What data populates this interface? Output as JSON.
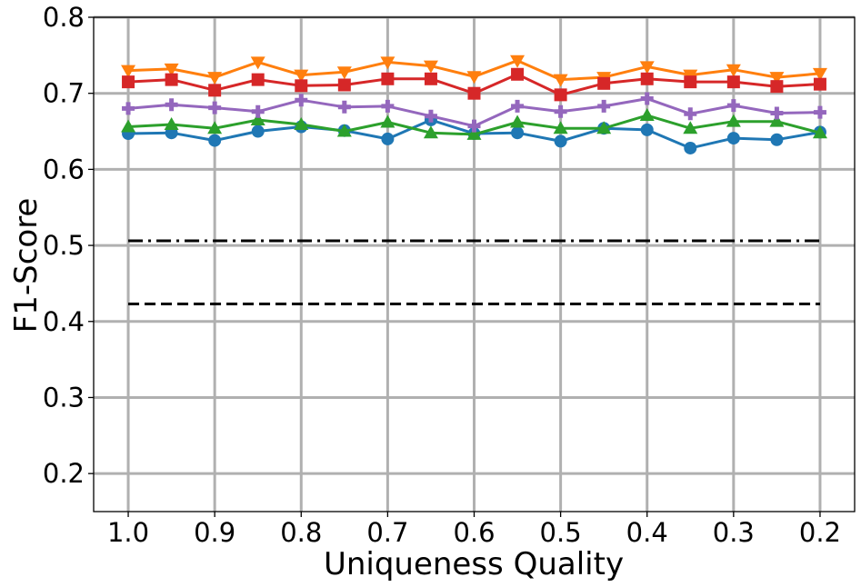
{
  "chart_data": {
    "type": "line",
    "title": "",
    "xlabel": "Uniqueness Quality",
    "ylabel": "F1-Score",
    "xlim": [
      1.04,
      0.16
    ],
    "ylim": [
      0.15,
      0.8
    ],
    "x_reversed": true,
    "grid": true,
    "x_ticks": [
      1.0,
      0.9,
      0.8,
      0.7,
      0.6,
      0.5,
      0.4,
      0.3,
      0.2
    ],
    "x_tick_labels": [
      "1.0",
      "0.9",
      "0.8",
      "0.7",
      "0.6",
      "0.5",
      "0.4",
      "0.3",
      "0.2"
    ],
    "y_ticks": [
      0.2,
      0.3,
      0.4,
      0.5,
      0.6,
      0.7,
      0.8
    ],
    "y_tick_labels": [
      "0.2",
      "0.3",
      "0.4",
      "0.5",
      "0.6",
      "0.7",
      "0.8"
    ],
    "x": [
      1.0,
      0.95,
      0.9,
      0.85,
      0.8,
      0.75,
      0.7,
      0.65,
      0.6,
      0.55,
      0.5,
      0.45,
      0.4,
      0.35,
      0.3,
      0.25,
      0.2
    ],
    "series": [
      {
        "color": "#1f77b4",
        "marker": "circle",
        "values": [
          0.647,
          0.648,
          0.638,
          0.65,
          0.656,
          0.651,
          0.64,
          0.665,
          0.647,
          0.648,
          0.637,
          0.654,
          0.652,
          0.628,
          0.641,
          0.639,
          0.649
        ]
      },
      {
        "color": "#ff7f0e",
        "marker": "triangle-down",
        "values": [
          0.73,
          0.732,
          0.721,
          0.741,
          0.724,
          0.728,
          0.741,
          0.736,
          0.722,
          0.743,
          0.718,
          0.721,
          0.735,
          0.724,
          0.731,
          0.721,
          0.726
        ]
      },
      {
        "color": "#2ca02c",
        "marker": "triangle-up",
        "values": [
          0.656,
          0.659,
          0.654,
          0.665,
          0.659,
          0.65,
          0.662,
          0.648,
          0.646,
          0.662,
          0.654,
          0.654,
          0.671,
          0.654,
          0.663,
          0.663,
          0.648
        ]
      },
      {
        "color": "#d62728",
        "marker": "square",
        "values": [
          0.715,
          0.718,
          0.704,
          0.718,
          0.71,
          0.711,
          0.719,
          0.719,
          0.7,
          0.725,
          0.698,
          0.713,
          0.719,
          0.715,
          0.715,
          0.709,
          0.712
        ]
      },
      {
        "color": "#9467bd",
        "marker": "plus",
        "values": [
          0.68,
          0.685,
          0.681,
          0.676,
          0.691,
          0.682,
          0.683,
          0.67,
          0.657,
          0.683,
          0.676,
          0.683,
          0.693,
          0.673,
          0.684,
          0.674,
          0.675
        ]
      }
    ],
    "reference_lines": [
      {
        "y": 0.506,
        "x_range": [
          1.0,
          0.2
        ],
        "style": "dash-dot",
        "color": "#000000"
      },
      {
        "y": 0.423,
        "x_range": [
          1.0,
          0.2
        ],
        "style": "dashed",
        "color": "#000000"
      }
    ]
  }
}
